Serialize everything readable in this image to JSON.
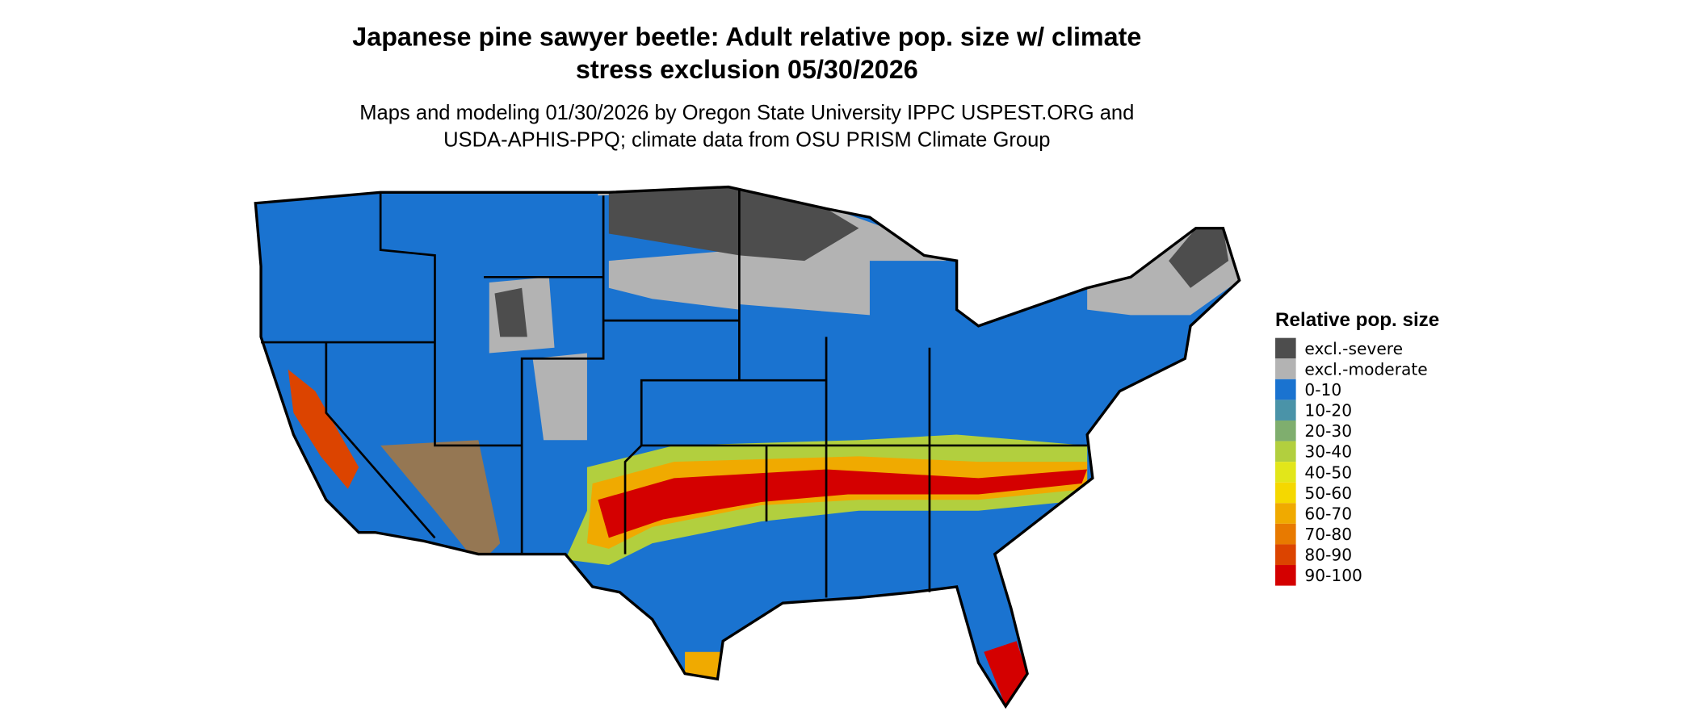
{
  "title": {
    "line1": "Japanese pine sawyer beetle: Adult relative pop. size w/ climate",
    "line2": "stress exclusion 05/30/2026"
  },
  "subtitle": {
    "line1": "Maps and modeling 01/30/2026 by Oregon State University IPPC USPEST.ORG and",
    "line2": "USDA-APHIS-PPQ; climate data from OSU PRISM Climate Group"
  },
  "legend": {
    "title": "Relative pop. size",
    "items": [
      {
        "label": "excl.-severe",
        "color": "#4d4d4d"
      },
      {
        "label": "excl.-moderate",
        "color": "#b3b3b3"
      },
      {
        "label": "0-10",
        "color": "#1a73d0"
      },
      {
        "label": "10-20",
        "color": "#4a93a8"
      },
      {
        "label": "20-30",
        "color": "#7fae6e"
      },
      {
        "label": "30-40",
        "color": "#b2cf3e"
      },
      {
        "label": "40-50",
        "color": "#e2e61a"
      },
      {
        "label": "50-60",
        "color": "#f5d800"
      },
      {
        "label": "60-70",
        "color": "#f0aa00"
      },
      {
        "label": "70-80",
        "color": "#e87a00"
      },
      {
        "label": "80-90",
        "color": "#dc4400"
      },
      {
        "label": "90-100",
        "color": "#d40000"
      }
    ]
  }
}
